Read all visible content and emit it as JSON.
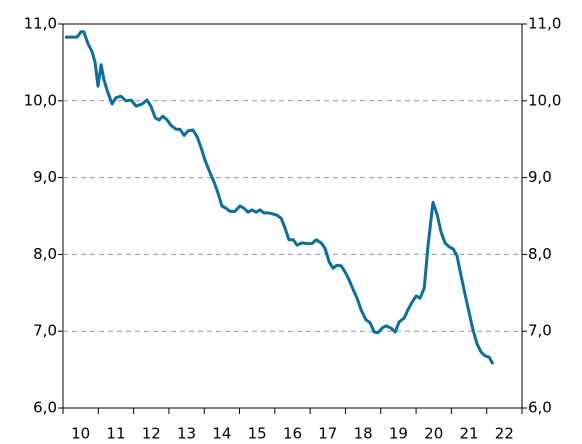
{
  "chart_data": {
    "type": "line",
    "x": [
      10.06,
      10.25,
      10.4,
      10.51,
      10.59,
      10.71,
      10.82,
      10.91,
      10.99,
      11.08,
      11.16,
      11.27,
      11.39,
      11.5,
      11.64,
      11.78,
      11.93,
      12.07,
      12.24,
      12.38,
      12.49,
      12.61,
      12.72,
      12.83,
      12.95,
      13.06,
      13.2,
      13.31,
      13.43,
      13.54,
      13.68,
      13.8,
      13.91,
      14.02,
      14.14,
      14.28,
      14.39,
      14.5,
      14.62,
      14.73,
      14.87,
      15.01,
      15.13,
      15.24,
      15.35,
      15.47,
      15.58,
      15.69,
      15.81,
      15.92,
      16.06,
      16.18,
      16.29,
      16.4,
      16.52,
      16.63,
      16.77,
      16.91,
      17.05,
      17.17,
      17.31,
      17.42,
      17.54,
      17.65,
      17.76,
      17.88,
      17.99,
      18.1,
      18.22,
      18.33,
      18.44,
      18.58,
      18.7,
      18.81,
      18.92,
      19.04,
      19.15,
      19.29,
      19.41,
      19.52,
      19.66,
      19.77,
      19.89,
      20.0,
      20.11,
      20.23,
      20.34,
      20.48,
      20.6,
      20.71,
      20.82,
      20.93,
      21.05,
      21.16,
      21.27,
      21.39,
      21.5,
      21.61,
      21.73,
      21.84,
      21.95,
      22.07,
      22.18
    ],
    "series": [
      {
        "color": "#0b6e9c",
        "values": [
          10.83,
          10.83,
          10.83,
          10.9,
          10.9,
          10.74,
          10.64,
          10.5,
          10.19,
          10.47,
          10.27,
          10.11,
          9.96,
          10.04,
          10.06,
          10.0,
          10.01,
          9.93,
          9.96,
          10.01,
          9.93,
          9.78,
          9.75,
          9.8,
          9.75,
          9.68,
          9.63,
          9.63,
          9.55,
          9.61,
          9.62,
          9.53,
          9.39,
          9.23,
          9.09,
          8.94,
          8.8,
          8.63,
          8.6,
          8.56,
          8.56,
          8.63,
          8.6,
          8.55,
          8.58,
          8.55,
          8.58,
          8.54,
          8.54,
          8.53,
          8.51,
          8.47,
          8.34,
          8.19,
          8.19,
          8.12,
          8.15,
          8.14,
          8.14,
          8.19,
          8.15,
          8.08,
          7.9,
          7.82,
          7.86,
          7.85,
          7.77,
          7.67,
          7.54,
          7.43,
          7.28,
          7.15,
          7.11,
          6.99,
          6.98,
          7.04,
          7.07,
          7.04,
          6.99,
          7.12,
          7.17,
          7.28,
          7.38,
          7.46,
          7.43,
          7.56,
          8.12,
          8.68,
          8.51,
          8.29,
          8.15,
          8.1,
          8.07,
          7.98,
          7.73,
          7.47,
          7.25,
          7.02,
          6.83,
          6.73,
          6.68,
          6.66,
          6.57
        ]
      }
    ],
    "xlim": [
      10,
      23
    ],
    "xticks": [
      {
        "value": 10.5,
        "label": "10"
      },
      {
        "value": 11.5,
        "label": "11"
      },
      {
        "value": 12.5,
        "label": "12"
      },
      {
        "value": 13.5,
        "label": "13"
      },
      {
        "value": 14.5,
        "label": "14"
      },
      {
        "value": 15.5,
        "label": "15"
      },
      {
        "value": 16.5,
        "label": "16"
      },
      {
        "value": 17.5,
        "label": "17"
      },
      {
        "value": 18.5,
        "label": "18"
      },
      {
        "value": 19.5,
        "label": "19"
      },
      {
        "value": 20.5,
        "label": "20"
      },
      {
        "value": 21.5,
        "label": "21"
      },
      {
        "value": 22.5,
        "label": "22"
      }
    ],
    "ylim": [
      6,
      11
    ],
    "yticks": [
      {
        "value": 6,
        "label": "6,0"
      },
      {
        "value": 7,
        "label": "7,0"
      },
      {
        "value": 8,
        "label": "8,0"
      },
      {
        "value": 9,
        "label": "9,0"
      },
      {
        "value": 10,
        "label": "10,0"
      },
      {
        "value": 11,
        "label": "11,0"
      }
    ],
    "grid": true
  }
}
